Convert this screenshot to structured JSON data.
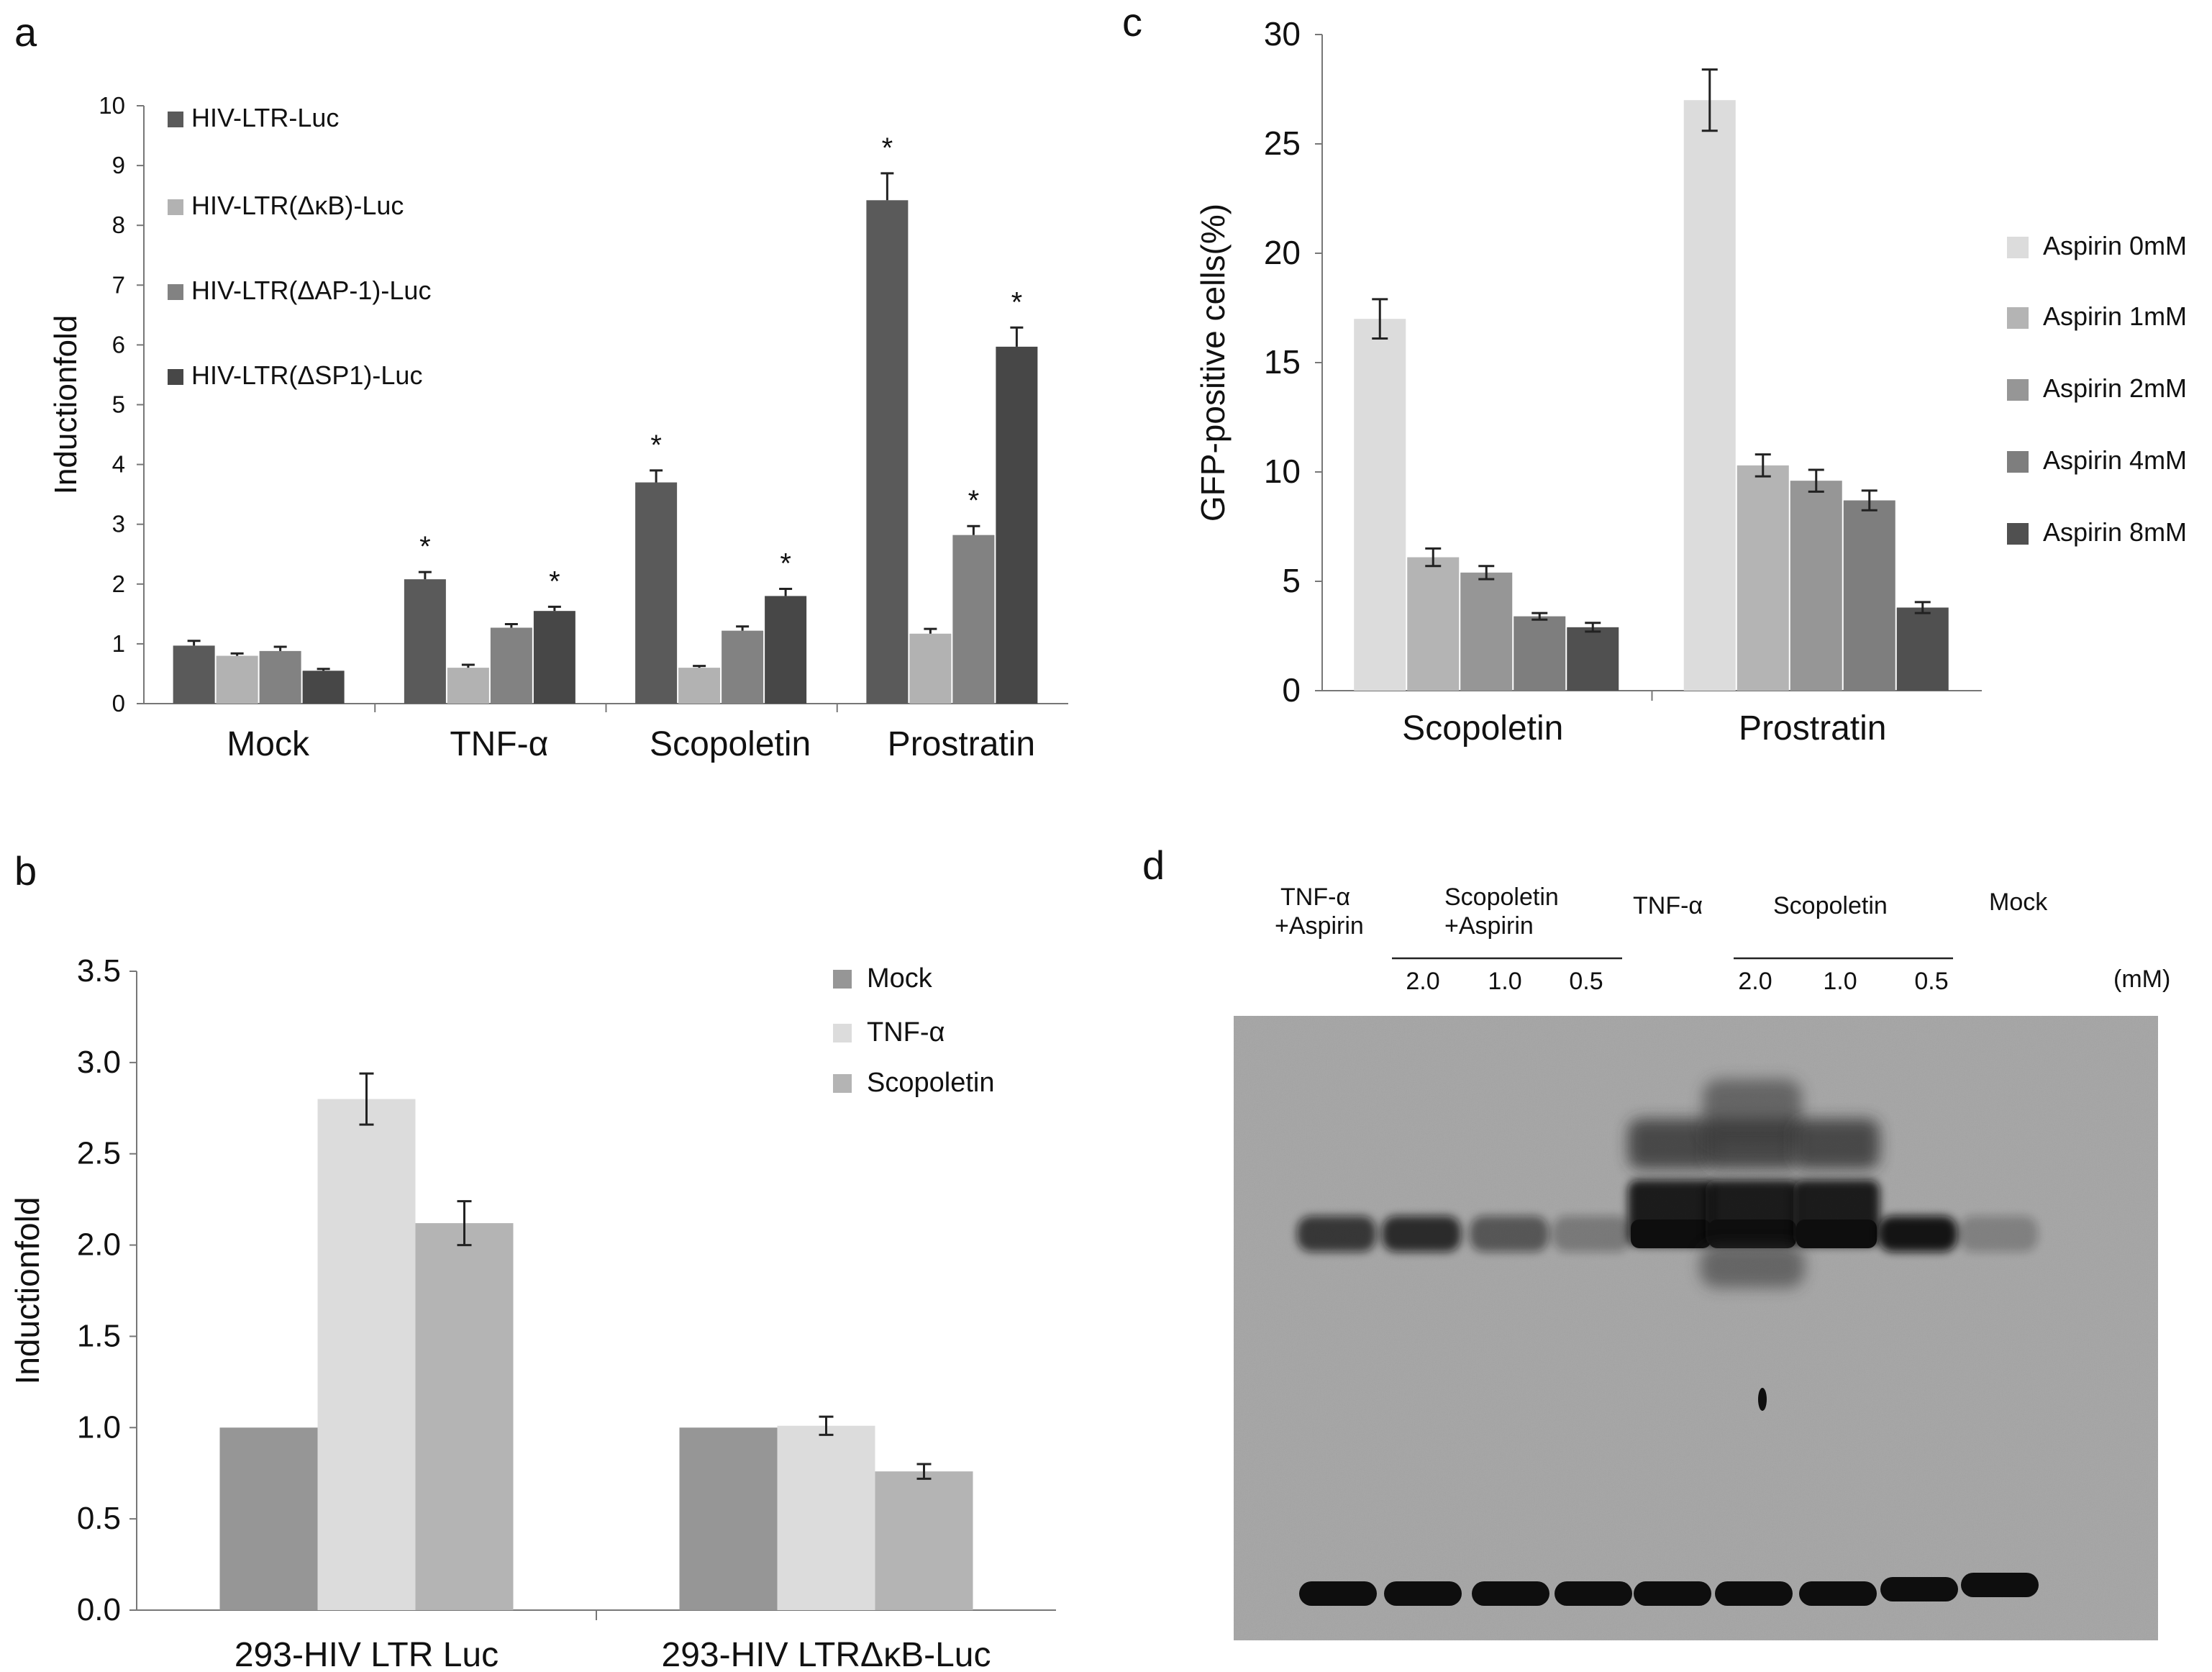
{
  "panels": {
    "a": {
      "letter": "a"
    },
    "b": {
      "letter": "b"
    },
    "c": {
      "letter": "c"
    },
    "d": {
      "letter": "d"
    }
  },
  "colors": {
    "a": [
      "#5a5a5a",
      "#b2b2b2",
      "#828282",
      "#474747"
    ],
    "b": [
      "#969696",
      "#dcdcdc",
      "#b4b4b4"
    ],
    "c": [
      "#dcdcdc",
      "#b4b4b4",
      "#969696",
      "#7e7e7e",
      "#505050"
    ],
    "gel_background": "#a4a4a4",
    "band": "#0e0e0e"
  },
  "chart_data": [
    {
      "id": "a",
      "type": "bar",
      "title": "",
      "xlabel": "",
      "ylabel": "Inductionfold",
      "ylim": [
        0,
        10
      ],
      "yticks": [
        "0",
        "1",
        "2",
        "3",
        "4",
        "5",
        "6",
        "7",
        "8",
        "9",
        "10"
      ],
      "categories": [
        "Mock",
        "TNF-α",
        "Scopoletin",
        "Prostratin"
      ],
      "series": [
        {
          "name": "HIV-LTR-Luc",
          "values": [
            0.97,
            2.08,
            3.7,
            8.42
          ],
          "errors": [
            0.08,
            0.12,
            0.2,
            0.45
          ],
          "star": [
            false,
            true,
            true,
            true
          ]
        },
        {
          "name": "HIV-LTR(ΔκB)-Luc",
          "values": [
            0.8,
            0.6,
            0.6,
            1.17
          ],
          "errors": [
            0.04,
            0.05,
            0.03,
            0.08
          ],
          "star": [
            false,
            false,
            false,
            false
          ]
        },
        {
          "name": "HIV-LTR(ΔAP-1)-Luc",
          "values": [
            0.88,
            1.27,
            1.22,
            2.82
          ],
          "errors": [
            0.07,
            0.06,
            0.07,
            0.15
          ],
          "star": [
            false,
            false,
            false,
            true
          ]
        },
        {
          "name": "HIV-LTR(ΔSP1)-Luc",
          "values": [
            0.55,
            1.55,
            1.8,
            5.97
          ],
          "errors": [
            0.03,
            0.07,
            0.12,
            0.32
          ],
          "star": [
            false,
            true,
            true,
            true
          ]
        }
      ],
      "star_symbol": "*",
      "legend": "top-left"
    },
    {
      "id": "b",
      "type": "bar",
      "title": "",
      "xlabel": "",
      "ylabel": "Inductionfold",
      "ylim": [
        0,
        3.5
      ],
      "yticks": [
        "0.0",
        "0.5",
        "1.0",
        "1.5",
        "2.0",
        "2.5",
        "3.0",
        "3.5"
      ],
      "categories": [
        "293-HIV LTR Luc",
        "293-HIV LTRΔκB-Luc"
      ],
      "series": [
        {
          "name": "Mock",
          "values": [
            1.0,
            1.0
          ],
          "errors": [
            0,
            0
          ]
        },
        {
          "name": "TNF-α",
          "values": [
            2.8,
            1.01
          ],
          "errors": [
            0.14,
            0.05
          ]
        },
        {
          "name": "Scopoletin",
          "values": [
            2.12,
            0.76
          ],
          "errors": [
            0.12,
            0.04
          ]
        }
      ],
      "legend": "top-right"
    },
    {
      "id": "c",
      "type": "bar",
      "title": "",
      "xlabel": "",
      "ylabel": "GFP-positive cells(%)",
      "ylim": [
        0,
        30
      ],
      "yticks": [
        "0",
        "5",
        "10",
        "15",
        "20",
        "25",
        "30"
      ],
      "categories": [
        "Scopoletin",
        "Prostratin"
      ],
      "series": [
        {
          "name": "Aspirin 0mM",
          "values": [
            17.0,
            27.0
          ],
          "errors": [
            0.9,
            1.4
          ]
        },
        {
          "name": "Aspirin 1mM",
          "values": [
            6.1,
            10.3
          ],
          "errors": [
            0.4,
            0.5
          ]
        },
        {
          "name": "Aspirin 2mM",
          "values": [
            5.4,
            9.6
          ],
          "errors": [
            0.3,
            0.5
          ]
        },
        {
          "name": "Aspirin 4mM",
          "values": [
            3.4,
            8.7
          ],
          "errors": [
            0.15,
            0.45
          ]
        },
        {
          "name": "Aspirin 8mM",
          "values": [
            2.9,
            3.8
          ],
          "errors": [
            0.2,
            0.25
          ]
        }
      ],
      "legend": "right"
    }
  ],
  "gel": {
    "group_labels": [
      {
        "line1": "TNF-α",
        "line2": "+Aspirin"
      },
      {
        "line1": "Scopoletin",
        "line2": "+Aspirin"
      },
      {
        "line1": "TNF-α",
        "line2": ""
      },
      {
        "line1": "Scopoletin",
        "line2": ""
      },
      {
        "line1": "Mock",
        "line2": ""
      }
    ],
    "dose_labels_aspirin": [
      "2.0",
      "1.0",
      "0.5"
    ],
    "dose_labels_scopoletin": [
      "2.0",
      "1.0",
      "0.5"
    ],
    "unit": "(mM)",
    "lane_intensity": [
      0.45,
      0.5,
      0.32,
      0.18,
      1.0,
      1.35,
      1.05,
      0.6,
      0.15
    ]
  }
}
